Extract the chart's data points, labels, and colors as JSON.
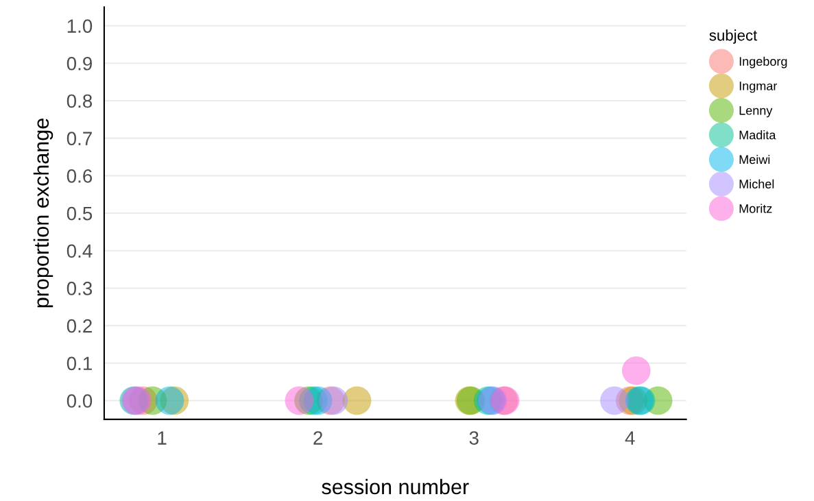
{
  "chart_data": {
    "type": "scatter",
    "xlabel": "session number",
    "ylabel": "proportion exchange",
    "legend_title": "subject",
    "legend": "right",
    "grid": "y",
    "marker": "circle",
    "xlim": [
      0.63,
      4.36
    ],
    "xticks": [
      1,
      2,
      3,
      4
    ],
    "ylim": [
      -0.05,
      1.05
    ],
    "yticks": [
      {
        "value": 0,
        "label": "0.0"
      },
      {
        "value": 0.1,
        "label": "0.1"
      },
      {
        "value": 0.2,
        "label": "0.2"
      },
      {
        "value": 0.3,
        "label": "0.3"
      },
      {
        "value": 0.4,
        "label": "0.4"
      },
      {
        "value": 0.5,
        "label": "0.5"
      },
      {
        "value": 0.6,
        "label": "0.6"
      },
      {
        "value": 0.7,
        "label": "0.7"
      },
      {
        "value": 0.8,
        "label": "0.8"
      },
      {
        "value": 0.9,
        "label": "0.9"
      },
      {
        "value": 1,
        "label": "1.0"
      }
    ],
    "series": [
      {
        "name": "Ingeborg",
        "color": "#f8766d",
        "x": [
          0.88,
          2.08,
          3.19,
          4.0
        ],
        "values": [
          0,
          0,
          0,
          0
        ]
      },
      {
        "name": "Ingmar",
        "color": "#c49a00",
        "x": [
          1.08,
          2.25,
          2.97,
          4.02
        ],
        "values": [
          0,
          0,
          0,
          0
        ]
      },
      {
        "name": "Lenny",
        "color": "#53b400",
        "x": [
          0.94,
          1.94,
          2.98,
          4.18
        ],
        "values": [
          0,
          0,
          0,
          0
        ]
      },
      {
        "name": "Madita",
        "color": "#00c094",
        "x": [
          0.82,
          1.97,
          3.09,
          4.07
        ],
        "values": [
          0,
          0,
          0,
          0
        ]
      },
      {
        "name": "Meiwi",
        "color": "#00b6eb",
        "x": [
          1.05,
          2.0,
          3.11,
          4.06
        ],
        "values": [
          0,
          0,
          0,
          0
        ]
      },
      {
        "name": "Michel",
        "color": "#a58aff",
        "x": [
          0.83,
          2.1,
          3.12,
          3.9
        ],
        "values": [
          0,
          0,
          0,
          0
        ]
      },
      {
        "name": "Moritz",
        "color": "#fb61d7",
        "x": [
          0.84,
          1.88,
          3.2,
          4.04
        ],
        "values": [
          0,
          0,
          0,
          0.08
        ]
      }
    ]
  }
}
